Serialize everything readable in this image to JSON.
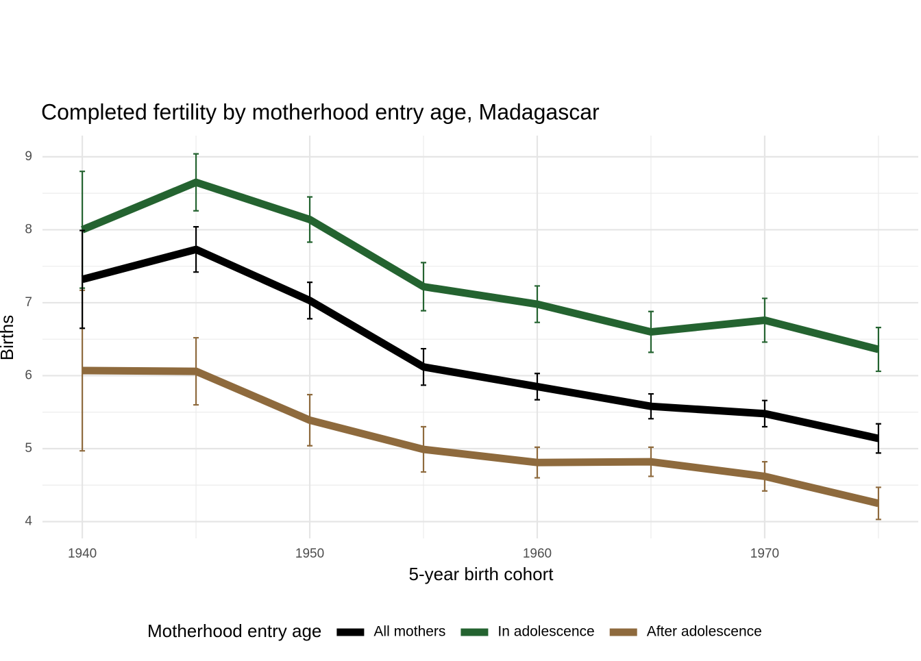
{
  "chart_data": {
    "type": "line",
    "title": "Completed fertility by motherhood entry age,  Madagascar",
    "x_label": "5-year birth cohort",
    "y_label": "Births",
    "legend_title": "Motherhood entry age",
    "legend_position": "bottom",
    "x": [
      1940,
      1945,
      1950,
      1955,
      1960,
      1965,
      1970,
      1975
    ],
    "series": [
      {
        "name": "All mothers",
        "color": "#000000",
        "values": [
          7.32,
          7.73,
          7.03,
          6.12,
          5.85,
          5.58,
          5.48,
          5.14
        ],
        "errors": [
          0.67,
          0.31,
          0.25,
          0.25,
          0.18,
          0.17,
          0.18,
          0.2
        ]
      },
      {
        "name": "In adolescence",
        "color": "#246330",
        "values": [
          8.0,
          8.65,
          8.14,
          7.22,
          6.98,
          6.6,
          6.76,
          6.36
        ],
        "errors": [
          0.8,
          0.39,
          0.31,
          0.33,
          0.25,
          0.28,
          0.3,
          0.3
        ]
      },
      {
        "name": "After adolescence",
        "color": "#8e6a3d",
        "values": [
          6.07,
          6.06,
          5.39,
          4.99,
          4.81,
          4.82,
          4.62,
          4.25
        ],
        "errors": [
          1.1,
          0.46,
          0.35,
          0.31,
          0.21,
          0.2,
          0.2,
          0.22
        ]
      }
    ],
    "xlim": [
      1938.25,
      1976.75
    ],
    "xticks": [
      1940,
      1950,
      1960,
      1970
    ],
    "x_minor_ticks": [
      1945,
      1955,
      1965,
      1975
    ],
    "ylim": [
      3.77,
      9.29
    ],
    "yticks": [
      4,
      5,
      6,
      7,
      8,
      9
    ],
    "y_minor_ticks": [
      4.5,
      5.5,
      6.5,
      7.5,
      8.5
    ],
    "grid": true
  }
}
